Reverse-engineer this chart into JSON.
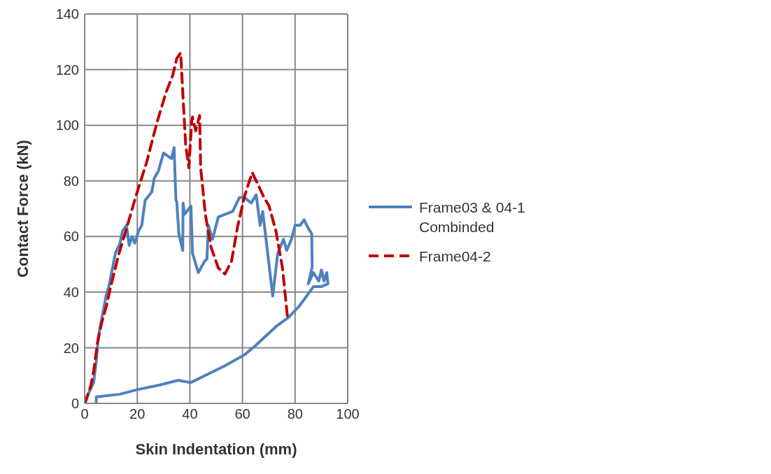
{
  "chart_data": {
    "type": "line",
    "xlabel": "Skin Indentation (mm)",
    "ylabel": "Contact Force (kN)",
    "xlim": [
      0,
      100
    ],
    "xticks": [
      0,
      20,
      40,
      60,
      80,
      100
    ],
    "ylim": [
      0,
      140
    ],
    "yticks": [
      0,
      20,
      40,
      60,
      80,
      100,
      120,
      140
    ],
    "grid": true,
    "legend": "right",
    "marker": "none",
    "series": [
      {
        "name": "Frame03 & 04-1 Combinded",
        "color": "#4f81bd",
        "line_style": "solid",
        "x": [
          0,
          0.4,
          3.4,
          4.4,
          5.2,
          6.4,
          8.2,
          9.2,
          11.7,
          13.4,
          14.4,
          15.9,
          16.9,
          18,
          19,
          20.5,
          21.7,
          23,
          25.5,
          26.5,
          28,
          30,
          33,
          34,
          34.7,
          35,
          35.8,
          37.3,
          37.4,
          38,
          40.4,
          41,
          43.2,
          45.5,
          46.5,
          47,
          48.6,
          50.8,
          56.3,
          58.8,
          60.8,
          63.3,
          65.2,
          66.7,
          67.7,
          71.5,
          73.4,
          75.6,
          76.8,
          78.6,
          80,
          81.9,
          83.4,
          85,
          86.3,
          86.5,
          85,
          87,
          89,
          90,
          91,
          92,
          92.5,
          90,
          88,
          87,
          81.6,
          77.6,
          72.7,
          65.2,
          60.8,
          53.3,
          40.4,
          35.5,
          28.5,
          20.2,
          13.4,
          4.4,
          4.4
        ],
        "values": [
          2,
          1.5,
          7.5,
          15,
          24,
          30,
          39,
          42,
          54,
          57.5,
          62,
          64,
          56.8,
          60,
          57.6,
          62,
          64,
          73,
          76,
          81,
          83.5,
          90,
          88,
          92,
          73,
          72.7,
          61,
          55,
          72,
          68,
          71,
          54,
          47,
          51,
          52,
          64,
          59,
          67,
          69,
          74,
          74,
          72,
          75,
          64,
          69,
          38.6,
          54,
          59,
          55,
          59,
          64,
          64,
          66,
          63,
          61,
          49,
          43,
          47,
          44,
          48,
          44,
          47,
          43,
          42,
          42,
          42,
          35,
          31,
          27.6,
          21,
          17.5,
          13.5,
          7.5,
          8.3,
          6.6,
          5,
          3.3,
          2.3,
          0
        ]
      },
      {
        "name": "Frame04-2",
        "color": "#c00000",
        "line_style": "dashed",
        "x": [
          0,
          0.4,
          2.4,
          3.4,
          4.9,
          6.4,
          8.4,
          9.9,
          12.9,
          15.9,
          19.5,
          23.5,
          27.5,
          31,
          33.5,
          35,
          36.5,
          37.4,
          38.4,
          39.6,
          40.7,
          41,
          42.2,
          43.7,
          44.1,
          45.9,
          48.1,
          50.8,
          53.3,
          55.8,
          58.2,
          60.8,
          63.7,
          65.7,
          68.2,
          70.1,
          72.7,
          75.2,
          77.1
        ],
        "values": [
          0,
          0.7,
          6.6,
          11.5,
          22,
          28.7,
          35.5,
          42,
          53.4,
          62.8,
          74.6,
          86.5,
          101,
          112,
          118,
          124,
          126,
          110,
          93,
          84.7,
          101.5,
          103,
          98,
          103.5,
          84.7,
          67.8,
          56,
          48.7,
          46.5,
          51,
          63.8,
          74.6,
          83,
          79,
          74,
          71,
          62,
          48.7,
          31
        ]
      }
    ]
  }
}
